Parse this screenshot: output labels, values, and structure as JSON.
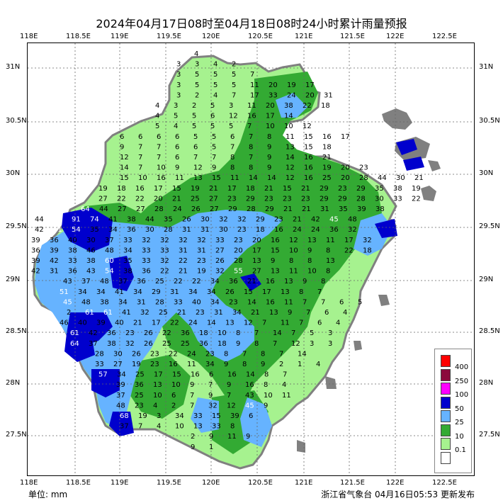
{
  "title": "2024年04月17日08时至04月18日08时24小时累计雨量预报",
  "footer": {
    "unit_label": "单位: mm",
    "issuer": "浙江省气象台 04月16日05:53 更新发布"
  },
  "axes": {
    "lon_labels": [
      "118E",
      "118.5E",
      "119E",
      "119.5E",
      "120E",
      "120.5E",
      "121E",
      "121.5E",
      "122E",
      "122.5E"
    ],
    "lat_labels": [
      "31N",
      "30.5N",
      "30N",
      "29.5N",
      "29N",
      "28.5N",
      "28N",
      "27.5N"
    ]
  },
  "legend": {
    "thresholds": [
      "400",
      "250",
      "100",
      "50",
      "25",
      "10",
      "0.1"
    ],
    "colors": [
      "#ff0000",
      "#8b0a3c",
      "#ff00ff",
      "#0000cd",
      "#66b3ff",
      "#33aa33",
      "#a6f28f",
      "#ffffff"
    ]
  },
  "colors": {
    "gray_land": "#808080",
    "light_green": "#a6f28f",
    "green": "#33aa33",
    "light_blue": "#66b3ff",
    "blue": "#0000cd"
  },
  "values_rows": [
    [
      "4"
    ],
    [
      "3",
      "3",
      "4",
      "2"
    ],
    [
      "3",
      "5",
      "5",
      "5",
      "7"
    ],
    [
      "3",
      "5",
      "5",
      "5",
      "11",
      "20",
      "19",
      "17"
    ],
    [
      "3",
      "2",
      "4",
      "7",
      "17",
      "33",
      "24",
      "20",
      "31"
    ],
    [
      "4",
      "3",
      "2",
      "5",
      "3",
      "11",
      "20",
      "38",
      "22",
      "18"
    ],
    [
      "4",
      "5",
      "5",
      "6",
      "12",
      "16",
      "17",
      "14"
    ],
    [
      "5",
      "4",
      "5",
      "5",
      "5",
      "7",
      "10",
      "10",
      "12"
    ],
    [
      "6",
      "6",
      "6",
      "6",
      "5",
      "5",
      "6",
      "7",
      "8",
      "11",
      "15",
      "16",
      "17"
    ],
    [
      "9",
      "7",
      "7",
      "6",
      "6",
      "5",
      "7",
      "8",
      "9",
      "13",
      "15",
      "18"
    ],
    [
      "12",
      "7",
      "7",
      "6",
      "7",
      "7",
      "8",
      "7",
      "9",
      "14",
      "16",
      "21"
    ],
    [
      "14",
      "7",
      "10",
      "9",
      "12",
      "9",
      "8",
      "8",
      "9",
      "12",
      "16",
      "19",
      "20",
      "23"
    ],
    [
      "15",
      "10",
      "16",
      "11",
      "13",
      "15",
      "11",
      "14",
      "14",
      "12",
      "16",
      "25",
      "20",
      "28",
      "44",
      "30",
      "21"
    ],
    [
      "19",
      "18",
      "16",
      "17",
      "15",
      "19",
      "21",
      "17",
      "18",
      "21",
      "15",
      "21",
      "29",
      "23",
      "29",
      "35",
      "38",
      "19"
    ],
    [
      "27",
      "22",
      "22",
      "20",
      "21",
      "25",
      "27",
      "23",
      "29",
      "23",
      "23",
      "23",
      "29",
      "29",
      "28",
      "30",
      "33",
      "22"
    ],
    [
      "64",
      "44",
      "27",
      "27",
      "28",
      "24",
      "26",
      "27",
      "29",
      "28",
      "29",
      "21",
      "21",
      "31",
      "35",
      "39",
      "38"
    ],
    [
      "44",
      "61",
      "91",
      "74",
      "41",
      "38",
      "44",
      "35",
      "26",
      "30",
      "32",
      "32",
      "29",
      "23",
      "21",
      "42",
      "45",
      "48"
    ],
    [
      "42",
      "51",
      "54",
      "35",
      "34",
      "36",
      "30",
      "28",
      "31",
      "31",
      "30",
      "23",
      "18",
      "16",
      "24",
      "24",
      "36",
      "32"
    ],
    [
      "39",
      "36",
      "40",
      "30",
      "37",
      "33",
      "32",
      "32",
      "32",
      "32",
      "33",
      "23",
      "20",
      "16",
      "12",
      "13",
      "11",
      "17",
      "32"
    ],
    [
      "36",
      "39",
      "38",
      "46",
      "48",
      "34",
      "33",
      "33",
      "31",
      "31",
      "27",
      "20",
      "17",
      "15",
      "10",
      "9",
      "8",
      "22",
      "18"
    ],
    [
      "39",
      "42",
      "33",
      "38",
      "60",
      "35",
      "33",
      "32",
      "22",
      "23",
      "26",
      "28",
      "13",
      "9",
      "8",
      "8",
      "13"
    ],
    [
      "42",
      "31",
      "36",
      "43",
      "54",
      "38",
      "36",
      "22",
      "21",
      "19",
      "32",
      "55",
      "27",
      "13",
      "11",
      "10",
      "8"
    ],
    [
      "43",
      "37",
      "48",
      "37",
      "36",
      "25",
      "22",
      "22",
      "34",
      "36",
      "21",
      "16",
      "13",
      "9",
      "8"
    ],
    [
      "51",
      "34",
      "34",
      "41",
      "34",
      "29",
      "31",
      "34",
      "34",
      "26",
      "15",
      "17",
      "13",
      "8",
      "7"
    ],
    [
      "45",
      "48",
      "38",
      "34",
      "31",
      "28",
      "33",
      "40",
      "34",
      "23",
      "14",
      "16",
      "11",
      "7",
      "7",
      "6",
      "5"
    ],
    [
      "2",
      "61",
      "61",
      "41",
      "32",
      "25",
      "21",
      "23",
      "31",
      "34",
      "21",
      "13",
      "9",
      "7",
      "6",
      "4"
    ],
    [
      "46",
      "40",
      "39",
      "40",
      "21",
      "17",
      "22",
      "24",
      "14",
      "13",
      "12",
      "7",
      "11",
      "7",
      "6",
      "4"
    ],
    [
      "61",
      "42",
      "36",
      "23",
      "26",
      "22",
      "36",
      "18",
      "10",
      "8",
      "7",
      "14",
      "7",
      "5",
      "3"
    ],
    [
      "64",
      "37",
      "38",
      "32",
      "26",
      "25",
      "25",
      "36",
      "18",
      "9",
      "8",
      "7",
      "12",
      "3",
      "3"
    ],
    [
      "28",
      "30",
      "26",
      "23",
      "22",
      "24",
      "23",
      "8",
      "7",
      "8",
      "7",
      "14"
    ],
    [
      "33",
      "27",
      "19",
      "23",
      "16",
      "11",
      "34",
      "9",
      "8",
      "9",
      "2",
      "1",
      "4"
    ],
    [
      "57",
      "34",
      "25",
      "17",
      "15",
      "16",
      "6",
      "16",
      "14",
      "8",
      "7"
    ],
    [
      "39",
      "36",
      "13",
      "10",
      "9",
      "7",
      "9",
      "16",
      "8",
      "4"
    ],
    [
      "37",
      "25",
      "10",
      "6",
      "7",
      "9",
      "7",
      "43",
      "10",
      "11"
    ],
    [
      "48",
      "23",
      "4",
      "2",
      "7",
      "32",
      "12",
      "45",
      "9"
    ],
    [
      "68",
      "19",
      "3",
      "34",
      "33",
      "15",
      "39",
      "6"
    ],
    [
      "37",
      "7",
      "4",
      "10",
      "13",
      "33",
      "8"
    ],
    [
      "2",
      "9",
      "11",
      "9"
    ],
    [
      "9",
      "1"
    ]
  ]
}
